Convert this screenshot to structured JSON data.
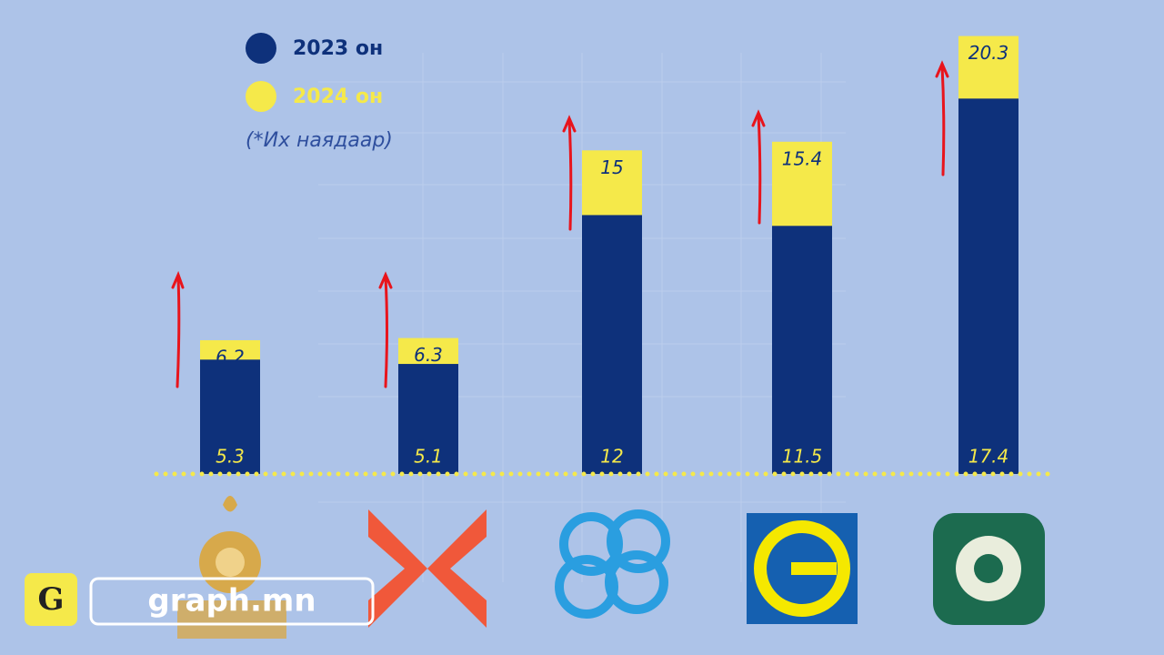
{
  "chart_data": {
    "type": "bar",
    "categories": [
      null,
      null,
      null,
      null,
      null
    ],
    "series": [
      {
        "name": "2024 он",
        "color": "#f5e94a",
        "values": [
          6.2,
          6.3,
          15,
          15.4,
          20.3
        ]
      },
      {
        "name": "2023 он",
        "color": "#0e317b",
        "values": [
          5.3,
          5.1,
          12,
          11.5,
          17.4
        ]
      }
    ],
    "note": "(*Их наядаар)",
    "ylim": [
      0,
      21
    ]
  },
  "watermark": {
    "logo": "G",
    "text": "graph.mn"
  }
}
